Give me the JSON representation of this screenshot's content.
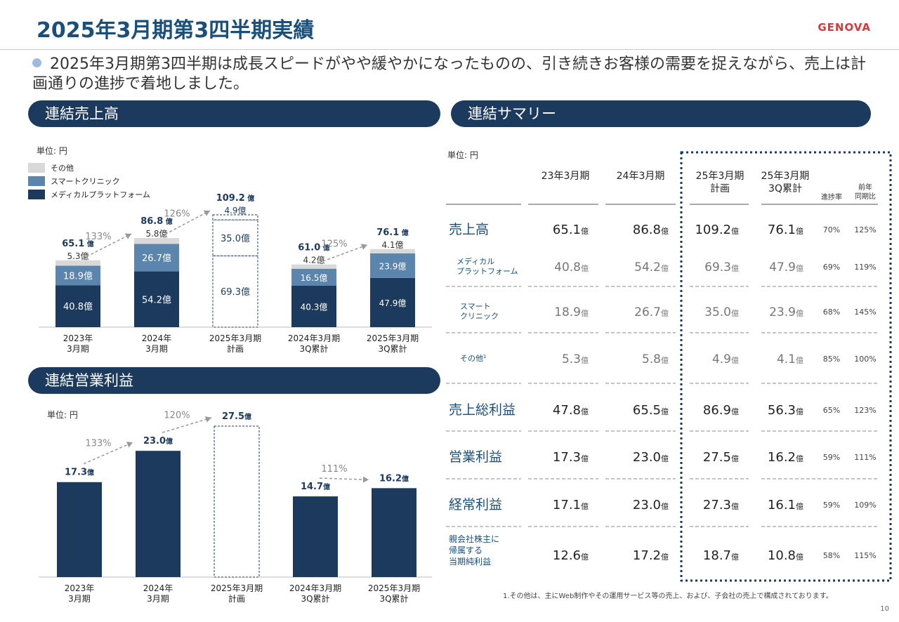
{
  "header": {
    "title": "2025年3月期第3四半期実績",
    "logo": "GENOVA",
    "lead": "2025年3月期第3四半期は成長スピードがやや緩やかになったものの、引き続きお客様の需要を捉えながら、売上は計画通りの進捗で着地しました。"
  },
  "sections": {
    "sales": "連結売上高",
    "op": "連結営業利益",
    "summary": "連結サマリー"
  },
  "unit_label": "単位: 円",
  "colors": {
    "navy": "#1c3a5e",
    "steel": "#5b85ad",
    "gray": "#d9d9d9",
    "accent": "#1a4f7a"
  },
  "chart_data": [
    {
      "type": "bar",
      "stacked": true,
      "title": "連結売上高",
      "categories": [
        "2023年\n3月期",
        "2024年\n3月期",
        "2025年3月期\n計画",
        "2024年3月期\n3Q累計",
        "2025年3月期\n3Q累計"
      ],
      "series": [
        {
          "name": "メディカルプラットフォーム",
          "color": "#1c3a5e",
          "values": [
            40.8,
            54.2,
            69.3,
            40.3,
            47.9
          ]
        },
        {
          "name": "スマートクリニック",
          "color": "#5b85ad",
          "values": [
            18.9,
            26.7,
            35.0,
            16.5,
            23.9
          ]
        },
        {
          "name": "その他",
          "color": "#d9d9d9",
          "values": [
            5.3,
            5.8,
            4.9,
            4.2,
            4.1
          ]
        }
      ],
      "totals": [
        65.1,
        86.8,
        109.2,
        61.0,
        76.1
      ],
      "segment_labels": [
        [
          "40.8億",
          "18.9億",
          "5.3億"
        ],
        [
          "54.2億",
          "26.7億",
          "5.8億"
        ],
        [
          "69.3億",
          "35.0億",
          "4.9億"
        ],
        [
          "40.3億",
          "16.5億",
          "4.2億"
        ],
        [
          "47.9億",
          "23.9億",
          "4.1億"
        ]
      ],
      "total_labels": [
        "65.1",
        "86.8",
        "109.2",
        "61.0",
        "76.1"
      ],
      "total_unit": "億",
      "plan_index": 2,
      "growth": [
        {
          "from": 0,
          "to": 1,
          "label": "133%"
        },
        {
          "from": 1,
          "to": 2,
          "label": "126%"
        },
        {
          "from": 3,
          "to": 4,
          "label": "125%"
        }
      ]
    },
    {
      "type": "bar",
      "title": "連結営業利益",
      "categories": [
        "2023年\n3月期",
        "2024年\n3月期",
        "2025年3月期\n計画",
        "2024年3月期\n3Q累計",
        "2025年3月期\n3Q累計"
      ],
      "values": [
        17.3,
        23.0,
        27.5,
        14.7,
        16.2
      ],
      "value_labels": [
        "17.3",
        "23.0",
        "27.5",
        "14.7",
        "16.2"
      ],
      "value_unit": "億",
      "color": "#1c3a5e",
      "plan_index": 2,
      "growth": [
        {
          "from": 0,
          "to": 1,
          "label": "133%"
        },
        {
          "from": 1,
          "to": 2,
          "label": "120%"
        },
        {
          "from": 3,
          "to": 4,
          "label": "111%"
        }
      ]
    },
    {
      "type": "table",
      "title": "連結サマリー",
      "columns": [
        "23年3月期",
        "24年3月期",
        "25年3月期\n計画",
        "25年3月期\n3Q累計",
        "進捗率",
        "前年\n同期比"
      ],
      "rows": [
        {
          "label": "売上高",
          "kind": "main",
          "values": [
            "65.1",
            "86.8",
            "109.2",
            "76.1"
          ],
          "progress": "70%",
          "yoy": "125%"
        },
        {
          "label": "メディカル\nプラットフォーム",
          "kind": "sub",
          "values": [
            "40.8",
            "54.2",
            "69.3",
            "47.9"
          ],
          "progress": "69%",
          "yoy": "119%"
        },
        {
          "label": "スマート\nクリニック",
          "kind": "sub",
          "values": [
            "18.9",
            "26.7",
            "35.0",
            "23.9"
          ],
          "progress": "68%",
          "yoy": "145%"
        },
        {
          "label": "その他",
          "sup": "1",
          "kind": "sub",
          "values": [
            "5.3",
            "5.8",
            "4.9",
            "4.1"
          ],
          "progress": "85%",
          "yoy": "100%"
        },
        {
          "label": "売上総利益",
          "kind": "main",
          "values": [
            "47.8",
            "65.5",
            "86.9",
            "56.3"
          ],
          "progress": "65%",
          "yoy": "123%"
        },
        {
          "label": "営業利益",
          "kind": "main",
          "values": [
            "17.3",
            "23.0",
            "27.5",
            "16.2"
          ],
          "progress": "59%",
          "yoy": "111%"
        },
        {
          "label": "経常利益",
          "kind": "main",
          "values": [
            "17.1",
            "23.0",
            "27.3",
            "16.1"
          ],
          "progress": "59%",
          "yoy": "109%"
        },
        {
          "label": "親会社株主に\n帰属する\n当期純利益",
          "kind": "small",
          "values": [
            "12.6",
            "17.2",
            "18.7",
            "10.8"
          ],
          "progress": "58%",
          "yoy": "115%"
        }
      ],
      "value_unit": "億"
    }
  ],
  "footnote": "1.その他は、主にWeb制作やその運用サービス等の売上、および、子会社の売上で構成されております。",
  "page_number": "10"
}
